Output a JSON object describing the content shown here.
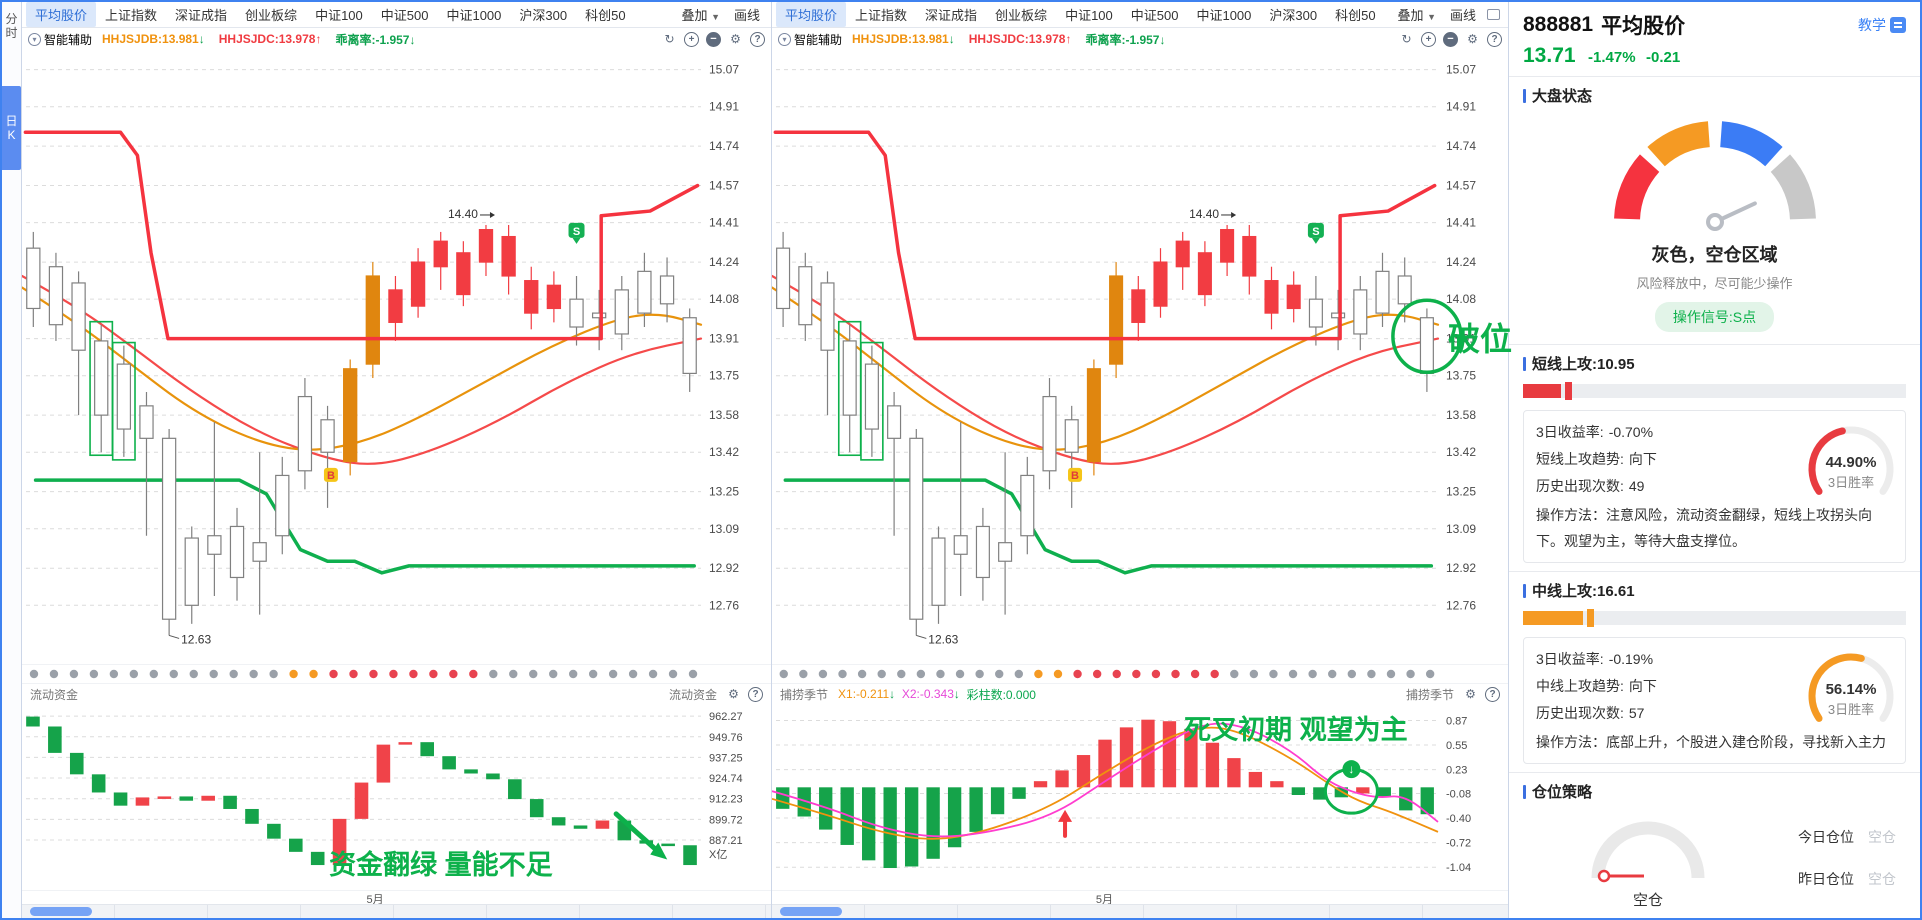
{
  "sidebar": {
    "tabs": [
      {
        "label": "分时",
        "active": false
      },
      {
        "label": "日K",
        "active": true
      }
    ]
  },
  "chart_tabs": [
    "平均股价",
    "上证指数",
    "深证成指",
    "创业板综",
    "中证100",
    "中证500",
    "中证1000",
    "沪深300",
    "科创50"
  ],
  "active_tab": "平均股价",
  "toolbar": {
    "overlay": "叠加",
    "draw": "画线"
  },
  "indicator_bar": {
    "assistant": "智能辅助",
    "items": [
      {
        "label": "HHJSJDB:13.981",
        "color": "#f0920e",
        "arrow": "↓",
        "arrow_color": "#0ea14e"
      },
      {
        "label": "HHJSJDC:13.978",
        "color": "#f03b41",
        "arrow": "↑",
        "arrow_color": "#f03b41"
      },
      {
        "label": "乖离率:-1.957",
        "color": "#0ea14e",
        "arrow": "↓",
        "arrow_color": "#0ea14e"
      }
    ]
  },
  "icons": {
    "refresh": "↻",
    "zoom_in": "+",
    "zoom_out": "−",
    "settings": "⚙",
    "help": "?",
    "caret": "▼"
  },
  "chart_data": {
    "type": [
      "candlestick",
      "waterfall",
      "bar"
    ],
    "kline": {
      "title": "平均股价 日K",
      "yticks": [
        "15.07",
        "14.91",
        "14.74",
        "14.57",
        "14.41",
        "14.24",
        "14.08",
        "13.91",
        "13.75",
        "13.58",
        "13.42",
        "13.25",
        "13.09",
        "12.92",
        "12.76"
      ],
      "price_domain": [
        12.55,
        15.12
      ],
      "candles": [
        [
          14.3,
          14.04,
          13.96,
          14.37,
          "w"
        ],
        [
          14.22,
          13.97,
          13.9,
          14.28,
          "w"
        ],
        [
          14.15,
          13.86,
          13.58,
          14.2,
          "w"
        ],
        [
          13.9,
          13.58,
          13.42,
          13.97,
          "w"
        ],
        [
          13.8,
          13.52,
          13.4,
          13.88,
          "w"
        ],
        [
          13.62,
          13.48,
          13.06,
          13.68,
          "w"
        ],
        [
          13.48,
          12.7,
          12.63,
          13.52,
          "w"
        ],
        [
          13.05,
          12.76,
          12.68,
          13.1,
          "w"
        ],
        [
          12.98,
          13.06,
          12.8,
          13.55,
          "w"
        ],
        [
          13.1,
          12.88,
          12.78,
          13.18,
          "w"
        ],
        [
          12.95,
          13.03,
          12.72,
          13.42,
          "w"
        ],
        [
          13.06,
          13.32,
          12.98,
          13.4,
          "w"
        ],
        [
          13.34,
          13.66,
          13.26,
          13.74,
          "w"
        ],
        [
          13.56,
          13.42,
          13.18,
          13.62,
          "w"
        ],
        [
          13.38,
          13.78,
          13.32,
          13.82,
          "o"
        ],
        [
          13.8,
          14.18,
          13.74,
          14.24,
          "o"
        ],
        [
          13.98,
          14.12,
          13.9,
          14.18,
          "r"
        ],
        [
          14.05,
          14.24,
          14.0,
          14.3,
          "r"
        ],
        [
          14.22,
          14.33,
          14.12,
          14.37,
          "r"
        ],
        [
          14.1,
          14.28,
          14.05,
          14.33,
          "r"
        ],
        [
          14.24,
          14.38,
          14.18,
          14.4,
          "r"
        ],
        [
          14.18,
          14.35,
          14.1,
          14.4,
          "r"
        ],
        [
          14.02,
          14.16,
          13.95,
          14.22,
          "r"
        ],
        [
          14.04,
          14.14,
          13.98,
          14.2,
          "r"
        ],
        [
          13.96,
          14.08,
          13.88,
          14.18,
          "w"
        ],
        [
          14.0,
          14.02,
          13.86,
          14.12,
          "w"
        ],
        [
          13.93,
          14.12,
          13.86,
          14.18,
          "w"
        ],
        [
          14.02,
          14.2,
          13.96,
          14.28,
          "w"
        ],
        [
          14.06,
          14.18,
          13.98,
          14.26,
          "w"
        ],
        [
          14.0,
          13.76,
          13.68,
          14.04,
          "w"
        ]
      ],
      "green_box_indices": [
        3,
        4
      ],
      "dragon_line": [
        [
          0.005,
          14.8
        ],
        [
          0.145,
          14.8
        ],
        [
          0.17,
          14.7
        ],
        [
          0.19,
          14.28
        ],
        [
          0.215,
          13.91
        ],
        [
          0.853,
          13.91
        ],
        [
          0.853,
          14.44
        ],
        [
          0.925,
          14.46
        ],
        [
          0.995,
          14.57
        ]
      ],
      "ma_red": [
        [
          0,
          14.18
        ],
        [
          0.08,
          14.05
        ],
        [
          0.16,
          13.88
        ],
        [
          0.25,
          13.68
        ],
        [
          0.35,
          13.5
        ],
        [
          0.45,
          13.39
        ],
        [
          0.52,
          13.36
        ],
        [
          0.6,
          13.42
        ],
        [
          0.7,
          13.55
        ],
        [
          0.8,
          13.72
        ],
        [
          0.9,
          13.85
        ],
        [
          1,
          13.91
        ]
      ],
      "ma_orange": [
        [
          0,
          14.13
        ],
        [
          0.08,
          13.98
        ],
        [
          0.16,
          13.8
        ],
        [
          0.25,
          13.6
        ],
        [
          0.34,
          13.47
        ],
        [
          0.42,
          13.42
        ],
        [
          0.5,
          13.46
        ],
        [
          0.58,
          13.56
        ],
        [
          0.68,
          13.72
        ],
        [
          0.78,
          13.88
        ],
        [
          0.88,
          14.0
        ],
        [
          0.94,
          14.02
        ],
        [
          1,
          13.97
        ]
      ],
      "green_line": [
        [
          0.02,
          13.3
        ],
        [
          0.32,
          13.3
        ],
        [
          0.36,
          13.24
        ],
        [
          0.41,
          13.0
        ],
        [
          0.45,
          12.95
        ],
        [
          0.49,
          12.95
        ],
        [
          0.53,
          12.9
        ],
        [
          0.57,
          12.93
        ],
        [
          0.99,
          12.93
        ]
      ],
      "markers": {
        "high_label": {
          "text": "14.40",
          "index": 20
        },
        "low_label": {
          "text": "12.63",
          "index": 6
        },
        "s_badge": {
          "text": "S",
          "index": 24,
          "price": 14.34
        },
        "b_badge": {
          "text": "B",
          "x": 0.455,
          "price": 13.37
        },
        "break_label": {
          "text": "破位",
          "index": 29,
          "price": 13.92
        }
      },
      "dots": [
        "g",
        "g",
        "g",
        "g",
        "g",
        "g",
        "g",
        "g",
        "g",
        "g",
        "g",
        "g",
        "g",
        "o",
        "o",
        "r",
        "r",
        "r",
        "r",
        "r",
        "r",
        "r",
        "r",
        "g",
        "g",
        "g",
        "g",
        "g",
        "g",
        "g",
        "g",
        "g",
        "g",
        "g"
      ],
      "colors": {
        "dragon": "#f5333f",
        "ma_red": "#f54a4a",
        "ma_orange": "#e8930c",
        "green": "#0faf4e",
        "candle_red": "#f23c42",
        "candle_orange": "#e0860f",
        "candle_white_border": "#808080",
        "dot_g": "#9aa0a8",
        "dot_o": "#f59a23",
        "dot_r": "#e84350",
        "annot": "#0db14b"
      }
    },
    "flow": {
      "name": "流动资金",
      "yticks": [
        "962.27",
        "949.76",
        "937.25",
        "924.74",
        "912.23",
        "899.72",
        "887.21"
      ],
      "unit": "X亿",
      "domain": [
        869,
        966
      ],
      "bars": [
        [
          962,
          956,
          "g"
        ],
        [
          956,
          940,
          "g"
        ],
        [
          940,
          927,
          "g"
        ],
        [
          927,
          916,
          "g"
        ],
        [
          916,
          908,
          "g"
        ],
        [
          908,
          913,
          "r"
        ],
        [
          913,
          913.6,
          "r"
        ],
        [
          913.6,
          911,
          "g"
        ],
        [
          911,
          914,
          "r"
        ],
        [
          914,
          906,
          "g"
        ],
        [
          906,
          897,
          "g"
        ],
        [
          897,
          888,
          "g"
        ],
        [
          888,
          880,
          "g"
        ],
        [
          880,
          872,
          "g"
        ],
        [
          872,
          900,
          "r"
        ],
        [
          900,
          922,
          "r"
        ],
        [
          922,
          945,
          "r"
        ],
        [
          945,
          946.5,
          "r"
        ],
        [
          946.5,
          938,
          "g"
        ],
        [
          938,
          930,
          "g"
        ],
        [
          930,
          927.5,
          "g"
        ],
        [
          927.5,
          924,
          "g"
        ],
        [
          924,
          912,
          "g"
        ],
        [
          912,
          901,
          "g"
        ],
        [
          901,
          896,
          "g"
        ],
        [
          896,
          894,
          "g"
        ],
        [
          894,
          899,
          "r"
        ],
        [
          899,
          887,
          "g"
        ],
        [
          887,
          885,
          "g"
        ],
        [
          885,
          884,
          "g"
        ],
        [
          884,
          872,
          "g"
        ]
      ],
      "annotation": "资金翻绿 量能不足",
      "xlabel": "5月",
      "colors": {
        "up": "#f04349",
        "down": "#15a34a"
      }
    },
    "harvest": {
      "name": "捕捞季节",
      "x1_label": "X1:-0.211",
      "x1_color": "#f0920e",
      "x2_label": "X2:-0.343",
      "x2_color": "#e649d8",
      "bars_label": "彩柱数:0.000",
      "bars_label_color": "#0ca74e",
      "yticks": [
        "0.87",
        "0.55",
        "0.23",
        "-0.08",
        "-0.40",
        "-0.72",
        "-1.04"
      ],
      "domain": [
        -1.18,
        0.98
      ],
      "bars": [
        [
          -0.28,
          "g"
        ],
        [
          -0.38,
          "g"
        ],
        [
          -0.55,
          "g"
        ],
        [
          -0.75,
          "g"
        ],
        [
          -0.95,
          "g"
        ],
        [
          -1.05,
          "g"
        ],
        [
          -1.03,
          "g"
        ],
        [
          -0.93,
          "g"
        ],
        [
          -0.78,
          "g"
        ],
        [
          -0.58,
          "g"
        ],
        [
          -0.35,
          "g"
        ],
        [
          -0.15,
          "g"
        ],
        [
          0.08,
          "r"
        ],
        [
          0.22,
          "r"
        ],
        [
          0.42,
          "r"
        ],
        [
          0.62,
          "r"
        ],
        [
          0.78,
          "r"
        ],
        [
          0.88,
          "r"
        ],
        [
          0.86,
          "r"
        ],
        [
          0.76,
          "r"
        ],
        [
          0.58,
          "r"
        ],
        [
          0.38,
          "r"
        ],
        [
          0.2,
          "r"
        ],
        [
          0.08,
          "r"
        ],
        [
          -0.1,
          "g"
        ],
        [
          -0.16,
          "g"
        ],
        [
          -0.13,
          "g"
        ],
        [
          -0.08,
          "r"
        ],
        [
          -0.12,
          "g"
        ],
        [
          -0.3,
          "g"
        ],
        [
          -0.35,
          "g"
        ]
      ],
      "x1_line": [
        [
          0,
          -0.15
        ],
        [
          0.08,
          -0.35
        ],
        [
          0.16,
          -0.58
        ],
        [
          0.24,
          -0.7
        ],
        [
          0.32,
          -0.58
        ],
        [
          0.42,
          -0.25
        ],
        [
          0.5,
          0.2
        ],
        [
          0.58,
          0.6
        ],
        [
          0.645,
          0.8
        ],
        [
          0.7,
          0.74
        ],
        [
          0.78,
          0.38
        ],
        [
          0.84,
          0.02
        ],
        [
          0.88,
          -0.18
        ],
        [
          0.93,
          -0.32
        ],
        [
          1,
          -0.58
        ]
      ],
      "x2_line": [
        [
          0,
          -0.05
        ],
        [
          0.08,
          -0.25
        ],
        [
          0.16,
          -0.52
        ],
        [
          0.24,
          -0.66
        ],
        [
          0.32,
          -0.6
        ],
        [
          0.42,
          -0.38
        ],
        [
          0.5,
          0.08
        ],
        [
          0.58,
          0.52
        ],
        [
          0.65,
          0.85
        ],
        [
          0.71,
          0.8
        ],
        [
          0.78,
          0.48
        ],
        [
          0.83,
          0.1
        ],
        [
          0.87,
          -0.06
        ],
        [
          0.91,
          -0.14
        ],
        [
          0.95,
          -0.1
        ],
        [
          1,
          -0.45
        ]
      ],
      "annotation": "死叉初期 观望为主",
      "xlabel": "5月",
      "circle_marker": {
        "x": 0.87,
        "v": -0.05
      },
      "arrow_up_marker": {
        "x": 0.44,
        "v": -0.45
      },
      "colors": {
        "up": "#f04349",
        "down": "#15a34a"
      }
    }
  },
  "right_panel": {
    "code": "888881",
    "name": "平均股价",
    "tutorial": "教学",
    "price": "13.71",
    "change_pct": "-1.47%",
    "change": "-0.21",
    "price_color": "#00a843",
    "market": {
      "title": "大盘状态",
      "status": "灰色，空仓区域",
      "desc": "风险释放中，尽可能少操作",
      "signal": "操作信号:S点",
      "segment_colors": [
        "#f5333f",
        "#f59a23",
        "#3b7cf5",
        "#c8c8c8"
      ],
      "needle_bearing": 155
    },
    "short": {
      "title": "短线上攻:10.95",
      "value": 10.95,
      "bar_color": "#e83b40",
      "rows": [
        {
          "label": "3日收益率:",
          "value": "-0.70%"
        },
        {
          "label": "短线上攻趋势:",
          "value": "向下"
        },
        {
          "label": "历史出现次数:",
          "value": "49"
        }
      ],
      "method": "操作方法：注意风险，流动资金翻绿，短线上攻拐头向下。观望为主，等待大盘支撑位。",
      "win_pct": "44.90%",
      "win_label": "3日胜率",
      "win_value": 44.9,
      "win_color": "#e83b40"
    },
    "mid": {
      "title": "中线上攻:16.61",
      "value": 16.61,
      "bar_color": "#f59a23",
      "rows": [
        {
          "label": "3日收益率:",
          "value": "-0.19%"
        },
        {
          "label": "中线上攻趋势:",
          "value": "向下"
        },
        {
          "label": "历史出现次数:",
          "value": "57"
        }
      ],
      "method": "操作方法：底部上升，个股进入建仓阶段，寻找新入主力",
      "win_pct": "56.14%",
      "win_label": "3日胜率",
      "win_value": 56.14,
      "win_color": "#f59a23"
    },
    "position": {
      "title": "仓位策略",
      "gauge_label": "空仓",
      "rows": [
        {
          "label": "今日仓位",
          "value": "空仓"
        },
        {
          "label": "昨日仓位",
          "value": "空仓"
        }
      ],
      "needle_color": "#e83b40"
    }
  }
}
